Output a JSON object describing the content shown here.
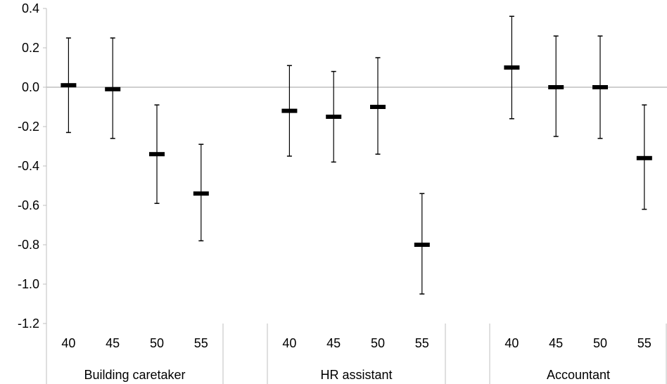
{
  "chart_data": {
    "type": "scatter",
    "title": "",
    "xlabel": "",
    "ylabel": "",
    "ylim": [
      -1.2,
      0.4
    ],
    "yticks": [
      "0.4",
      "0.2",
      "0.0",
      "-0.2",
      "-0.4",
      "-0.6",
      "-0.8",
      "-1.0",
      "-1.2"
    ],
    "grid": false,
    "groups": [
      {
        "label": "Building caretaker",
        "points": [
          {
            "x": "40",
            "y": 0.01,
            "low": -0.23,
            "high": 0.25
          },
          {
            "x": "45",
            "y": -0.01,
            "low": -0.26,
            "high": 0.25
          },
          {
            "x": "50",
            "y": -0.34,
            "low": -0.59,
            "high": -0.09
          },
          {
            "x": "55",
            "y": -0.54,
            "low": -0.78,
            "high": -0.29
          }
        ]
      },
      {
        "label": "HR assistant",
        "points": [
          {
            "x": "40",
            "y": -0.12,
            "low": -0.35,
            "high": 0.11
          },
          {
            "x": "45",
            "y": -0.15,
            "low": -0.38,
            "high": 0.08
          },
          {
            "x": "50",
            "y": -0.1,
            "low": -0.34,
            "high": 0.15
          },
          {
            "x": "55",
            "y": -0.8,
            "low": -1.05,
            "high": -0.54
          }
        ]
      },
      {
        "label": "Accountant",
        "points": [
          {
            "x": "40",
            "y": 0.1,
            "low": -0.16,
            "high": 0.36
          },
          {
            "x": "45",
            "y": 0.0,
            "low": -0.25,
            "high": 0.26
          },
          {
            "x": "50",
            "y": 0.0,
            "low": -0.26,
            "high": 0.26
          },
          {
            "x": "55",
            "y": -0.36,
            "low": -0.62,
            "high": -0.09
          }
        ]
      }
    ],
    "colors": {
      "marker": "#000000",
      "axis": "#bfbfbf",
      "zero_line": "#bfbfbf"
    }
  }
}
